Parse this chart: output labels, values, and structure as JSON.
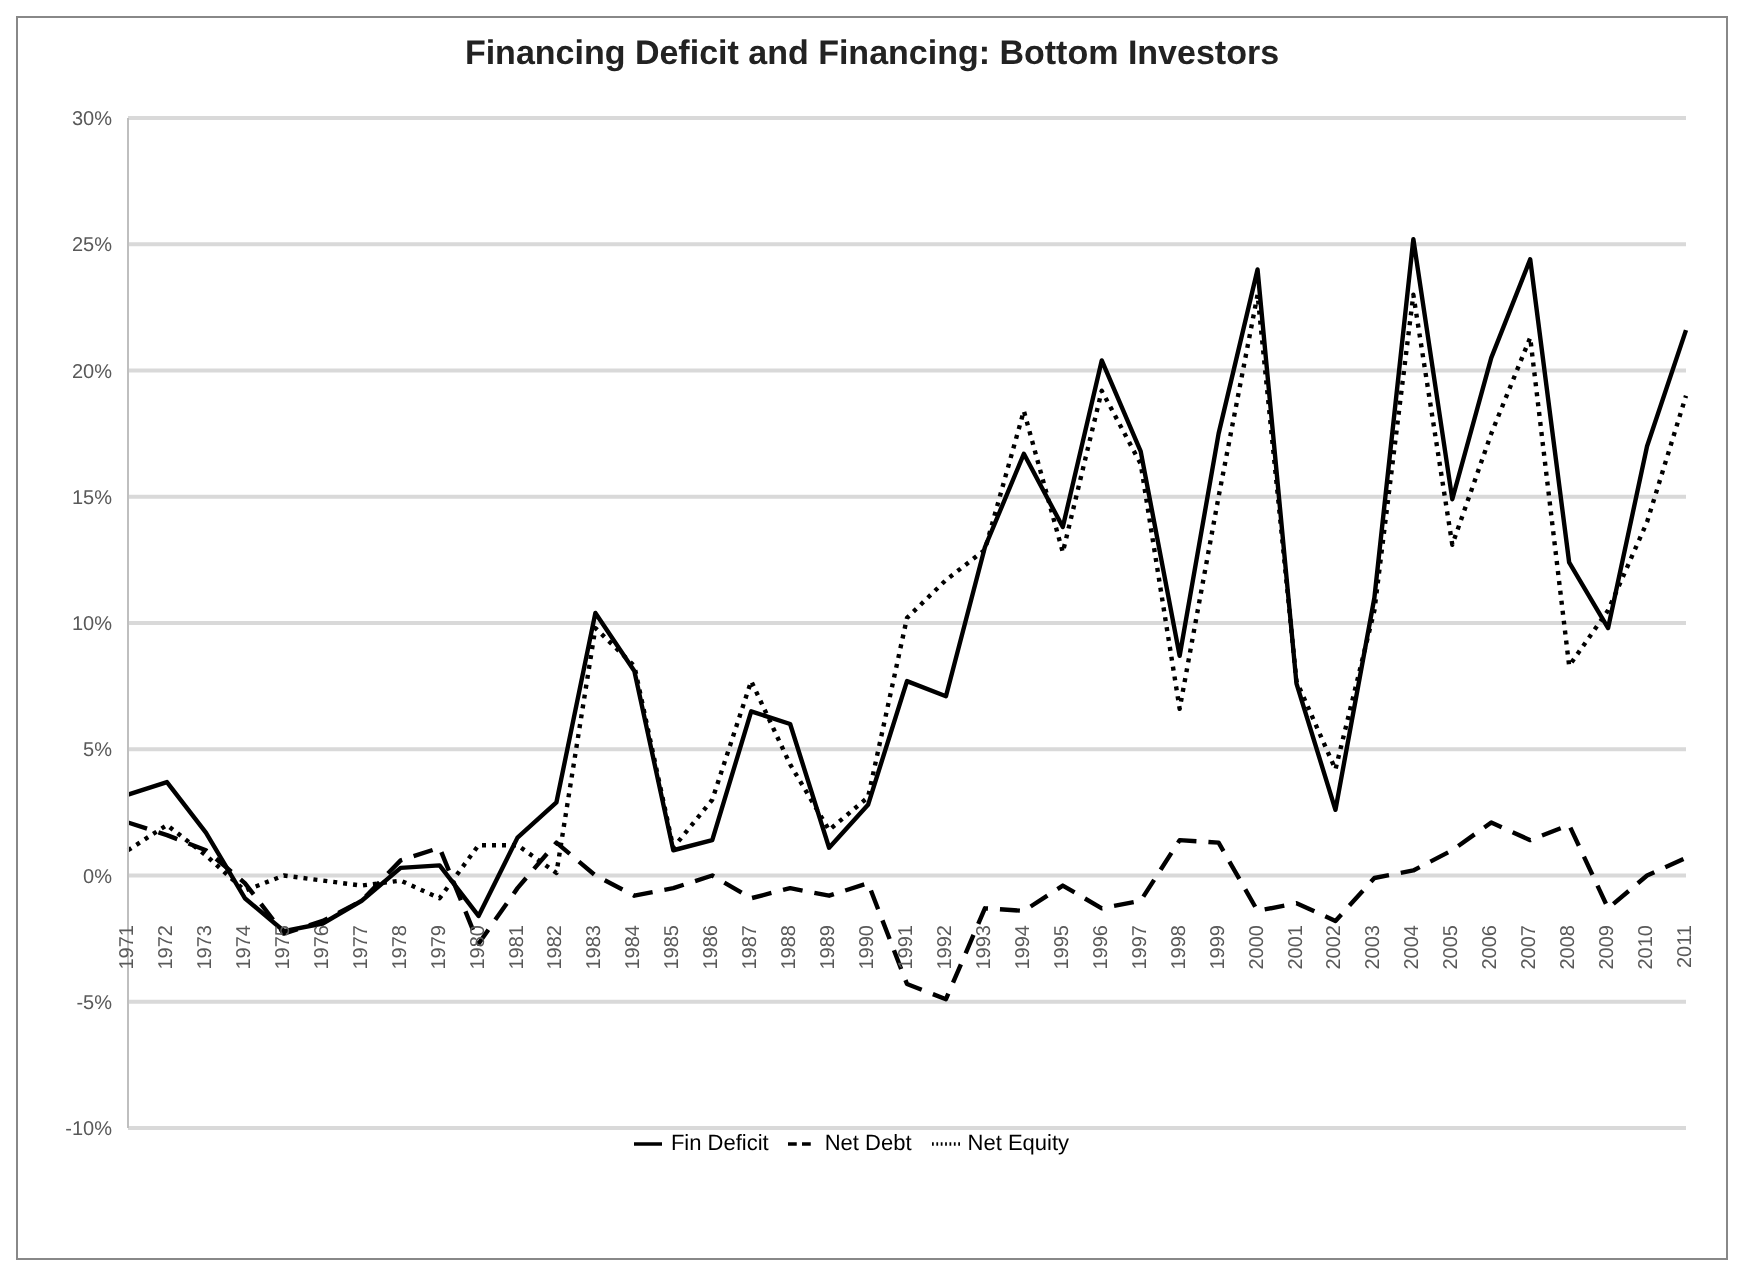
{
  "chart_data": {
    "type": "line",
    "title": "Financing Deficit and Financing: Bottom Investors",
    "categories": [
      "1971",
      "1972",
      "1973",
      "1974",
      "1975",
      "1976",
      "1977",
      "1978",
      "1979",
      "1980",
      "1981",
      "1982",
      "1983",
      "1984",
      "1985",
      "1986",
      "1987",
      "1988",
      "1989",
      "1990",
      "1991",
      "1992",
      "1993",
      "1994",
      "1995",
      "1996",
      "1997",
      "1998",
      "1999",
      "2000",
      "2001",
      "2002",
      "2003",
      "2004",
      "2005",
      "2006",
      "2007",
      "2008",
      "2009",
      "2010",
      "2011"
    ],
    "series": [
      {
        "name": "Fin Deficit",
        "color": "#000000",
        "line_style": "solid",
        "values": [
          3.2,
          3.7,
          1.7,
          -0.9,
          -2.2,
          -1.9,
          -1.0,
          0.3,
          0.4,
          -1.6,
          1.5,
          2.9,
          10.4,
          8.1,
          1.0,
          1.4,
          6.5,
          6.0,
          1.1,
          2.8,
          7.7,
          7.1,
          13.0,
          16.7,
          13.8,
          20.4,
          16.8,
          8.7,
          17.5,
          24.0,
          7.6,
          2.6,
          11.0,
          25.2,
          14.9,
          20.5,
          24.4,
          12.4,
          9.8,
          17.0,
          21.6
        ]
      },
      {
        "name": "Net Debt",
        "color": "#000000",
        "line_style": "dashed",
        "values": [
          2.1,
          1.6,
          1.0,
          -0.3,
          -2.3,
          -1.8,
          -1.0,
          0.6,
          1.1,
          -2.7,
          -0.5,
          1.3,
          0.0,
          -0.8,
          -0.5,
          0.0,
          -0.9,
          -0.5,
          -0.8,
          -0.3,
          -4.3,
          -4.9,
          -1.3,
          -1.4,
          -0.4,
          -1.3,
          -1.0,
          1.4,
          1.3,
          -1.4,
          -1.1,
          -1.8,
          -0.1,
          0.2,
          1.0,
          2.1,
          1.4,
          2.0,
          -1.3,
          0.0,
          0.7
        ]
      },
      {
        "name": "Net Equity",
        "color": "#000000",
        "line_style": "dotted",
        "values": [
          1.0,
          2.0,
          0.8,
          -0.6,
          0.0,
          -0.2,
          -0.4,
          -0.2,
          -0.9,
          1.2,
          1.2,
          0.1,
          9.8,
          8.3,
          1.1,
          3.0,
          7.7,
          4.4,
          1.8,
          3.1,
          10.2,
          11.7,
          12.9,
          18.4,
          12.8,
          19.2,
          16.3,
          6.6,
          15.0,
          23.0,
          7.7,
          4.2,
          10.5,
          23.0,
          13.1,
          17.5,
          21.3,
          8.3,
          10.5,
          14.0,
          19.0
        ]
      }
    ],
    "ylim": [
      -10,
      30
    ],
    "yticks": [
      {
        "value": -10,
        "label": "-10%"
      },
      {
        "value": -5,
        "label": "-5%"
      },
      {
        "value": 0,
        "label": "0%"
      },
      {
        "value": 5,
        "label": "5%"
      },
      {
        "value": 10,
        "label": "10%"
      },
      {
        "value": 15,
        "label": "15%"
      },
      {
        "value": 20,
        "label": "20%"
      },
      {
        "value": 25,
        "label": "25%"
      },
      {
        "value": 30,
        "label": "30%"
      }
    ],
    "grid": "y",
    "legend": "bottom",
    "marker": "none"
  }
}
